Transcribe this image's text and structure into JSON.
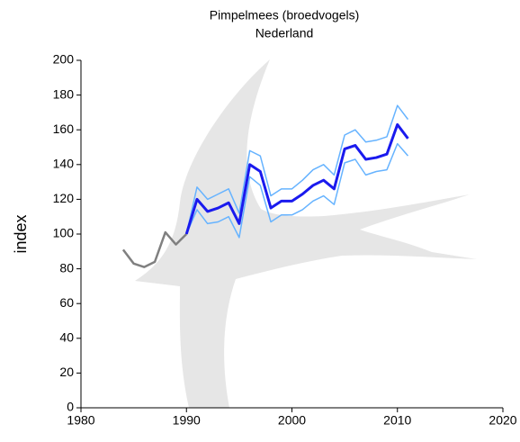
{
  "chart_data": {
    "type": "line",
    "title": "Pimpelmees (broedvogels)",
    "subtitle": "Nederland",
    "ylabel": "index",
    "x": [
      1984,
      1985,
      1986,
      1987,
      1988,
      1989,
      1990,
      1991,
      1992,
      1993,
      1994,
      1995,
      1996,
      1997,
      1998,
      1999,
      2000,
      2001,
      2002,
      2003,
      2004,
      2005,
      2006,
      2007,
      2008,
      2009,
      2010,
      2011
    ],
    "series": [
      {
        "name": "gray",
        "color": "#808080",
        "width": 2.5,
        "values": [
          91,
          83,
          81,
          84,
          101,
          94,
          100,
          null,
          null,
          null,
          null,
          null,
          null,
          null,
          null,
          null,
          null,
          null,
          null,
          null,
          null,
          null,
          null,
          null,
          null,
          null,
          null,
          null
        ]
      },
      {
        "name": "upper",
        "color": "#66b3ff",
        "width": 1.5,
        "values": [
          null,
          null,
          null,
          null,
          null,
          null,
          100,
          127,
          120,
          123,
          126,
          112,
          148,
          145,
          122,
          126,
          126,
          131,
          137,
          140,
          134,
          157,
          160,
          153,
          154,
          156,
          174,
          166
        ]
      },
      {
        "name": "lower",
        "color": "#66b3ff",
        "width": 1.5,
        "values": [
          null,
          null,
          null,
          null,
          null,
          null,
          100,
          114,
          106,
          107,
          110,
          98,
          133,
          128,
          107,
          111,
          111,
          114,
          119,
          122,
          117,
          141,
          143,
          134,
          136,
          137,
          152,
          145
        ]
      },
      {
        "name": "index",
        "color": "#1a1aee",
        "width": 3,
        "values": [
          null,
          null,
          null,
          null,
          null,
          null,
          100,
          120,
          113,
          115,
          118,
          106,
          140,
          136,
          115,
          119,
          119,
          123,
          128,
          131,
          126,
          149,
          151,
          143,
          144,
          146,
          163,
          155
        ]
      }
    ],
    "xlim": [
      1980,
      2020
    ],
    "xticks": [
      1980,
      1990,
      2000,
      2010,
      2020
    ],
    "ylim": [
      0,
      200
    ],
    "yticks": [
      0,
      20,
      40,
      60,
      80,
      100,
      120,
      140,
      160,
      180,
      200
    ]
  }
}
